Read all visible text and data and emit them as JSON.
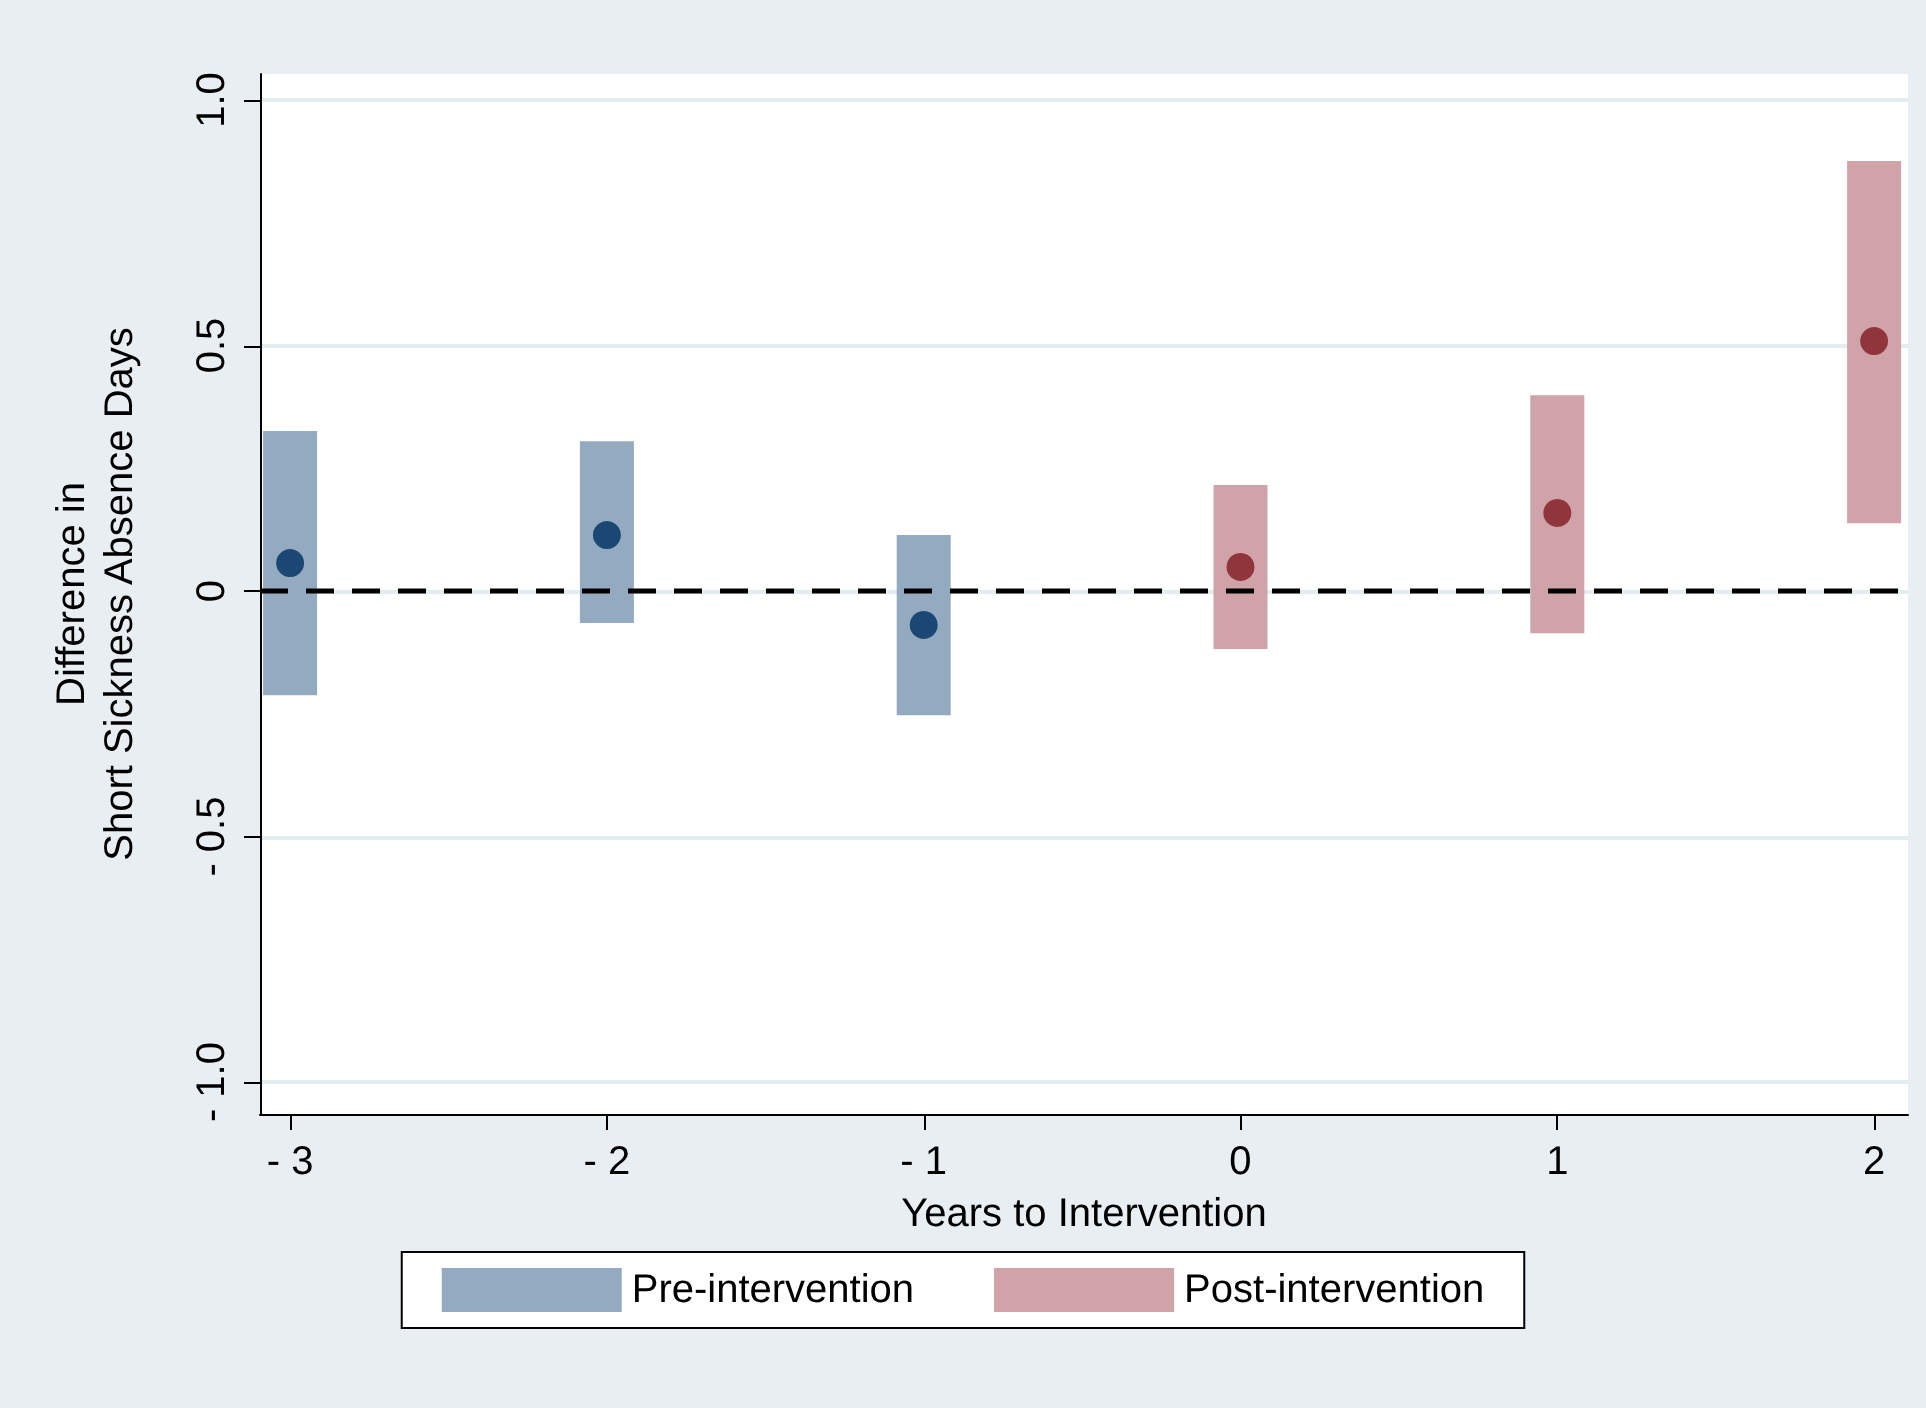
{
  "chart_data": {
    "type": "scatter",
    "xlabel": "Years to Intervention",
    "ylabel": "Difference in\nShort Sickness Absence Days",
    "xlim": [
      -3.095,
      2.107
    ],
    "xticks": [
      {
        "value": -3,
        "label": "- 3"
      },
      {
        "value": -2,
        "label": "- 2"
      },
      {
        "value": -1,
        "label": "- 1"
      },
      0,
      1,
      2
    ],
    "ylim": [
      -1.065,
      1.053
    ],
    "yticks": [
      {
        "value": -1,
        "label": "- 1.0"
      },
      {
        "value": -0.5,
        "label": "- 0.5"
      },
      0,
      {
        "value": 0.5,
        "label": "0.5"
      },
      {
        "value": 1,
        "label": "1.0"
      }
    ],
    "grid": "y",
    "legend": "bottom",
    "marker": "circle",
    "ref_lines": [
      {
        "axis": "y",
        "value": 0,
        "color": "#000000",
        "line_style": "dashed"
      }
    ],
    "series": [
      {
        "name": "Pre-intervention",
        "type": "bar",
        "color": "#94aac0",
        "x": [
          -3,
          -2,
          -1
        ],
        "base": [
          -0.212,
          -0.065,
          -0.253
        ],
        "values": [
          0.538,
          0.37,
          0.367
        ]
      },
      {
        "name": "Post-intervention",
        "type": "bar",
        "color": "#cfa3a8",
        "x": [
          0,
          1,
          2
        ],
        "base": [
          -0.118,
          -0.086,
          0.138
        ],
        "values": [
          0.334,
          0.485,
          0.738
        ]
      },
      {
        "color": "#1a4773",
        "x": [
          -3,
          -2,
          -1
        ],
        "values": [
          0.057,
          0.114,
          -0.069
        ]
      },
      {
        "color": "#90353b",
        "x": [
          0,
          1,
          2
        ],
        "values": [
          0.049,
          0.159,
          0.509
        ]
      }
    ]
  }
}
